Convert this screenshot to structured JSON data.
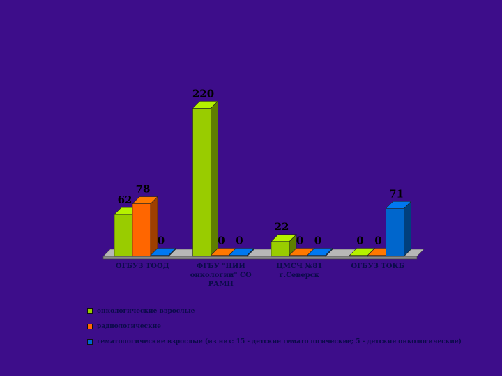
{
  "chart_data": {
    "type": "bar",
    "title": "",
    "xlabel": "",
    "ylabel": "",
    "ylim": [
      0,
      240
    ],
    "categories": [
      "ОГБУЗ ТООД",
      "ФГБУ \"НИИ онкологии\" СО РАМН",
      "ЦМСЧ №81 г.Северск",
      "ОГБУЗ ТОКБ"
    ],
    "series": [
      {
        "name": "онкологические взрослые",
        "color": "#99CC00",
        "values": [
          62,
          220,
          22,
          0
        ]
      },
      {
        "name": "радиологические",
        "color": "#FF6600",
        "values": [
          78,
          0,
          0,
          0
        ]
      },
      {
        "name": "гематологические взрослые (из них: 15 - детские гематологические; 5 - детские онкологические)",
        "color": "#0066CC",
        "values": [
          0,
          0,
          0,
          71
        ]
      }
    ],
    "legend_position": "bottom"
  }
}
